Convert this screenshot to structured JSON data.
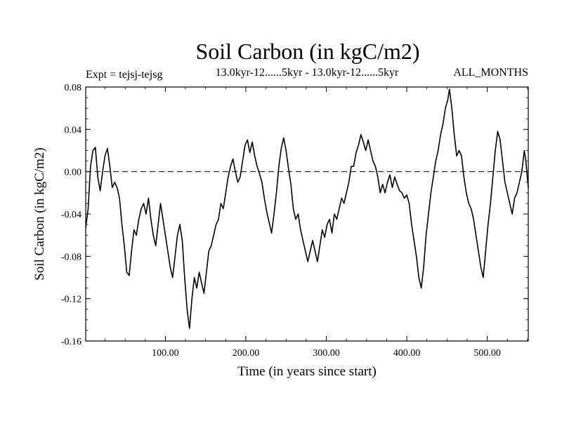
{
  "chart_data": {
    "type": "line",
    "title": "Soil Carbon (in kgC/m2)",
    "subtitle_left": "Expt = tejsj-tejsg",
    "subtitle_center": "13.0kyr-12......5kyr - 13.0kyr-12......5kyr",
    "subtitle_right": "ALL_MONTHS",
    "xlabel": "Time (in years since start)",
    "ylabel": "Soil Carbon (in kgC/m2)",
    "xlim": [
      1,
      551
    ],
    "ylim": [
      -0.16,
      0.08
    ],
    "x_ticks": [
      100,
      200,
      300,
      400,
      500
    ],
    "x_tick_labels": [
      "100.00",
      "200.00",
      "300.00",
      "400.00",
      "500.00"
    ],
    "y_ticks": [
      0.08,
      0.04,
      0.0,
      -0.04,
      -0.08,
      -0.12,
      -0.16
    ],
    "y_tick_labels": [
      "0.08",
      "0.04",
      "0.00",
      "-0.04",
      "-0.08",
      "-0.12",
      "-0.16"
    ],
    "reference_line": 0.0,
    "series": [
      {
        "name": "Soil Carbon",
        "color": "#000000",
        "points": [
          [
            1,
            -0.053
          ],
          [
            4,
            -0.035
          ],
          [
            7,
            0.005
          ],
          [
            10,
            0.02
          ],
          [
            13,
            0.023
          ],
          [
            16,
            -0.005
          ],
          [
            19,
            -0.018
          ],
          [
            22,
            0.0
          ],
          [
            25,
            0.015
          ],
          [
            28,
            0.022
          ],
          [
            31,
            0.005
          ],
          [
            34,
            -0.015
          ],
          [
            37,
            -0.01
          ],
          [
            40,
            -0.015
          ],
          [
            43,
            -0.025
          ],
          [
            46,
            -0.05
          ],
          [
            49,
            -0.07
          ],
          [
            52,
            -0.095
          ],
          [
            55,
            -0.098
          ],
          [
            58,
            -0.075
          ],
          [
            61,
            -0.055
          ],
          [
            64,
            -0.06
          ],
          [
            67,
            -0.045
          ],
          [
            70,
            -0.035
          ],
          [
            73,
            -0.03
          ],
          [
            76,
            -0.04
          ],
          [
            79,
            -0.025
          ],
          [
            82,
            -0.045
          ],
          [
            85,
            -0.06
          ],
          [
            88,
            -0.07
          ],
          [
            91,
            -0.05
          ],
          [
            94,
            -0.03
          ],
          [
            97,
            -0.045
          ],
          [
            100,
            -0.06
          ],
          [
            103,
            -0.075
          ],
          [
            106,
            -0.09
          ],
          [
            109,
            -0.1
          ],
          [
            112,
            -0.08
          ],
          [
            115,
            -0.06
          ],
          [
            118,
            -0.05
          ],
          [
            121,
            -0.065
          ],
          [
            124,
            -0.1
          ],
          [
            127,
            -0.13
          ],
          [
            130,
            -0.148
          ],
          [
            133,
            -0.12
          ],
          [
            136,
            -0.1
          ],
          [
            139,
            -0.11
          ],
          [
            142,
            -0.095
          ],
          [
            145,
            -0.105
          ],
          [
            148,
            -0.115
          ],
          [
            151,
            -0.095
          ],
          [
            154,
            -0.075
          ],
          [
            157,
            -0.07
          ],
          [
            160,
            -0.06
          ],
          [
            163,
            -0.05
          ],
          [
            166,
            -0.045
          ],
          [
            169,
            -0.03
          ],
          [
            172,
            -0.035
          ],
          [
            175,
            -0.02
          ],
          [
            178,
            -0.005
          ],
          [
            181,
            0.005
          ],
          [
            184,
            0.012
          ],
          [
            187,
            0.0
          ],
          [
            190,
            -0.01
          ],
          [
            193,
            -0.005
          ],
          [
            196,
            0.01
          ],
          [
            199,
            0.025
          ],
          [
            202,
            0.03
          ],
          [
            205,
            0.018
          ],
          [
            208,
            0.028
          ],
          [
            211,
            0.015
          ],
          [
            214,
            0.005
          ],
          [
            217,
            -0.002
          ],
          [
            220,
            -0.01
          ],
          [
            223,
            -0.025
          ],
          [
            226,
            -0.038
          ],
          [
            229,
            -0.048
          ],
          [
            232,
            -0.058
          ],
          [
            235,
            -0.04
          ],
          [
            238,
            -0.02
          ],
          [
            241,
            0.005
          ],
          [
            244,
            0.022
          ],
          [
            247,
            0.032
          ],
          [
            250,
            0.02
          ],
          [
            253,
            0.003
          ],
          [
            256,
            -0.012
          ],
          [
            259,
            -0.035
          ],
          [
            262,
            -0.045
          ],
          [
            265,
            -0.04
          ],
          [
            268,
            -0.055
          ],
          [
            271,
            -0.065
          ],
          [
            274,
            -0.075
          ],
          [
            277,
            -0.085
          ],
          [
            280,
            -0.075
          ],
          [
            283,
            -0.065
          ],
          [
            286,
            -0.075
          ],
          [
            289,
            -0.085
          ],
          [
            292,
            -0.07
          ],
          [
            295,
            -0.055
          ],
          [
            298,
            -0.062
          ],
          [
            301,
            -0.05
          ],
          [
            304,
            -0.045
          ],
          [
            307,
            -0.058
          ],
          [
            310,
            -0.04
          ],
          [
            313,
            -0.045
          ],
          [
            316,
            -0.035
          ],
          [
            319,
            -0.025
          ],
          [
            322,
            -0.03
          ],
          [
            325,
            -0.02
          ],
          [
            328,
            -0.01
          ],
          [
            331,
            0.005
          ],
          [
            334,
            0.005
          ],
          [
            337,
            0.018
          ],
          [
            340,
            0.025
          ],
          [
            343,
            0.035
          ],
          [
            346,
            0.028
          ],
          [
            349,
            0.02
          ],
          [
            352,
            0.03
          ],
          [
            355,
            0.02
          ],
          [
            358,
            0.01
          ],
          [
            361,
            0.005
          ],
          [
            364,
            -0.005
          ],
          [
            367,
            -0.02
          ],
          [
            370,
            -0.012
          ],
          [
            373,
            -0.02
          ],
          [
            376,
            -0.01
          ],
          [
            379,
            -0.003
          ],
          [
            382,
            -0.015
          ],
          [
            385,
            -0.005
          ],
          [
            388,
            -0.012
          ],
          [
            391,
            -0.018
          ],
          [
            394,
            -0.02
          ],
          [
            397,
            -0.025
          ],
          [
            400,
            -0.022
          ],
          [
            403,
            -0.03
          ],
          [
            406,
            -0.05
          ],
          [
            409,
            -0.065
          ],
          [
            412,
            -0.08
          ],
          [
            415,
            -0.1
          ],
          [
            418,
            -0.11
          ],
          [
            421,
            -0.09
          ],
          [
            424,
            -0.06
          ],
          [
            427,
            -0.04
          ],
          [
            430,
            -0.02
          ],
          [
            433,
            -0.005
          ],
          [
            436,
            0.01
          ],
          [
            439,
            0.02
          ],
          [
            442,
            0.035
          ],
          [
            445,
            0.045
          ],
          [
            448,
            0.06
          ],
          [
            451,
            0.068
          ],
          [
            453,
            0.078
          ],
          [
            456,
            0.06
          ],
          [
            459,
            0.035
          ],
          [
            462,
            0.015
          ],
          [
            465,
            0.02
          ],
          [
            468,
            0.015
          ],
          [
            471,
            -0.005
          ],
          [
            474,
            -0.02
          ],
          [
            477,
            -0.03
          ],
          [
            480,
            -0.035
          ],
          [
            483,
            -0.045
          ],
          [
            486,
            -0.06
          ],
          [
            489,
            -0.075
          ],
          [
            492,
            -0.09
          ],
          [
            495,
            -0.1
          ],
          [
            498,
            -0.075
          ],
          [
            501,
            -0.05
          ],
          [
            504,
            -0.03
          ],
          [
            507,
            -0.005
          ],
          [
            510,
            0.02
          ],
          [
            513,
            0.038
          ],
          [
            516,
            0.03
          ],
          [
            519,
            0.01
          ],
          [
            522,
            -0.01
          ],
          [
            525,
            -0.02
          ],
          [
            528,
            -0.03
          ],
          [
            531,
            -0.04
          ],
          [
            534,
            -0.025
          ],
          [
            537,
            -0.02
          ],
          [
            540,
            -0.01
          ],
          [
            543,
            0.0
          ],
          [
            546,
            0.02
          ],
          [
            548,
            0.01
          ],
          [
            551,
            -0.015
          ]
        ]
      }
    ]
  }
}
